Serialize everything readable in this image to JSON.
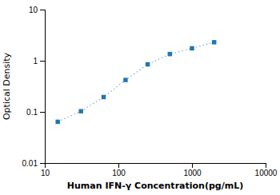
{
  "chart_data": {
    "type": "line",
    "x_label": "Human IFN-γ Concentration(pg/mL)",
    "y_label": "Optical Density",
    "x": [
      15,
      31,
      63,
      125,
      250,
      500,
      1000,
      2000
    ],
    "values": [
      0.064,
      0.103,
      0.195,
      0.42,
      0.85,
      1.35,
      1.75,
      2.3
    ],
    "marker": "square",
    "line_style": "dotted",
    "log": true,
    "xlim": [
      10,
      10000
    ],
    "ylim": [
      0.01,
      10
    ],
    "xticks": [
      10,
      100,
      1000,
      10000
    ],
    "yticks": [
      0.01,
      0.1,
      1,
      10
    ]
  }
}
